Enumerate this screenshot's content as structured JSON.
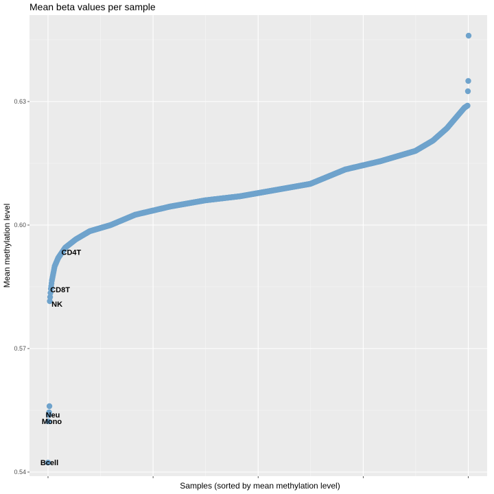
{
  "chart_data": {
    "type": "scatter",
    "title": "Mean beta values per sample",
    "xlabel": "Samples (sorted by mean methylation level)",
    "ylabel": "Mean methylation level",
    "ylim": [
      0.539,
      0.651
    ],
    "yticks": [
      0.54,
      0.57,
      0.6,
      0.63
    ],
    "ytick_labels": [
      "0.54",
      "0.57",
      "0.60",
      "0.63"
    ],
    "point_color": "#6fa3cc",
    "panel_color": "#ebebeb",
    "grid": true,
    "legend": "none",
    "highlighted_samples": [
      {
        "label": "Bcell",
        "rank": 1,
        "y": 0.5423
      },
      {
        "label": "Mono",
        "rank": 2,
        "y": 0.5523
      },
      {
        "label": "Neu",
        "rank": 3,
        "y": 0.5539
      },
      {
        "label": "NK",
        "rank": 7,
        "y": 0.5822
      },
      {
        "label": "CD8T",
        "rank": 8,
        "y": 0.5835
      },
      {
        "label": "CD4T",
        "rank": 40,
        "y": 0.5934
      }
    ],
    "curve_knots": [
      {
        "rank": 1,
        "y": 0.5423
      },
      {
        "rank": 2,
        "y": 0.5523
      },
      {
        "rank": 3,
        "y": 0.5539
      },
      {
        "rank": 4,
        "y": 0.5545
      },
      {
        "rank": 5,
        "y": 0.556
      },
      {
        "rank": 6,
        "y": 0.5815
      },
      {
        "rank": 9,
        "y": 0.5845
      },
      {
        "rank": 12,
        "y": 0.5865
      },
      {
        "rank": 20,
        "y": 0.59
      },
      {
        "rank": 30,
        "y": 0.592
      },
      {
        "rank": 50,
        "y": 0.5945
      },
      {
        "rank": 80,
        "y": 0.5965
      },
      {
        "rank": 120,
        "y": 0.5985
      },
      {
        "rank": 180,
        "y": 0.6
      },
      {
        "rank": 250,
        "y": 0.6025
      },
      {
        "rank": 350,
        "y": 0.6045
      },
      {
        "rank": 450,
        "y": 0.606
      },
      {
        "rank": 550,
        "y": 0.607
      },
      {
        "rank": 650,
        "y": 0.6085
      },
      {
        "rank": 750,
        "y": 0.61
      },
      {
        "rank": 850,
        "y": 0.6135
      },
      {
        "rank": 950,
        "y": 0.6155
      },
      {
        "rank": 1050,
        "y": 0.618
      },
      {
        "rank": 1100,
        "y": 0.6205
      },
      {
        "rank": 1140,
        "y": 0.6235
      },
      {
        "rank": 1170,
        "y": 0.6265
      },
      {
        "rank": 1190,
        "y": 0.6285
      },
      {
        "rank": 1199,
        "y": 0.629
      },
      {
        "rank": 1200,
        "y": 0.6325
      },
      {
        "rank": 1201,
        "y": 0.635
      },
      {
        "rank": 1202,
        "y": 0.646
      }
    ],
    "n_samples": 1202
  }
}
